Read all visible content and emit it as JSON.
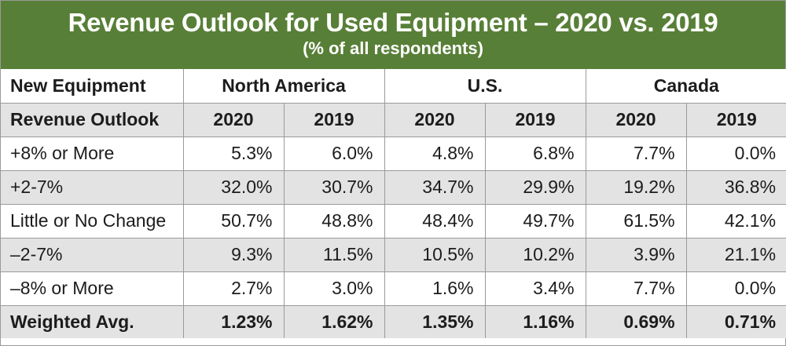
{
  "title": "Revenue Outlook for Used Equipment – 2020 vs. 2019",
  "subtitle": "(% of all respondents)",
  "colors": {
    "banner": "#587f37",
    "shade": "#e3e3e3",
    "grid": "#9a9a9a"
  },
  "header": {
    "corner_top": "New Equipment",
    "corner_bottom": "Revenue Outlook",
    "groups": [
      "North America",
      "U.S.",
      "Canada"
    ],
    "years": [
      "2020",
      "2019",
      "2020",
      "2019",
      "2020",
      "2019"
    ]
  },
  "rows": [
    {
      "label": "+8% or More",
      "values": [
        "5.3%",
        "6.0%",
        "4.8%",
        "6.8%",
        "7.7%",
        "0.0%"
      ]
    },
    {
      "label": "+2-7%",
      "values": [
        "32.0%",
        "30.7%",
        "34.7%",
        "29.9%",
        "19.2%",
        "36.8%"
      ]
    },
    {
      "label": "Little or No Change",
      "values": [
        "50.7%",
        "48.8%",
        "48.4%",
        "49.7%",
        "61.5%",
        "42.1%"
      ]
    },
    {
      "label": "–2-7%",
      "values": [
        "9.3%",
        "11.5%",
        "10.5%",
        "10.2%",
        "3.9%",
        "21.1%"
      ]
    },
    {
      "label": "–8% or More",
      "values": [
        "2.7%",
        "3.0%",
        "1.6%",
        "3.4%",
        "7.7%",
        "0.0%"
      ]
    },
    {
      "label": "Weighted Avg.",
      "values": [
        "1.23%",
        "1.62%",
        "1.35%",
        "1.16%",
        "0.69%",
        "0.71%"
      ]
    }
  ]
}
